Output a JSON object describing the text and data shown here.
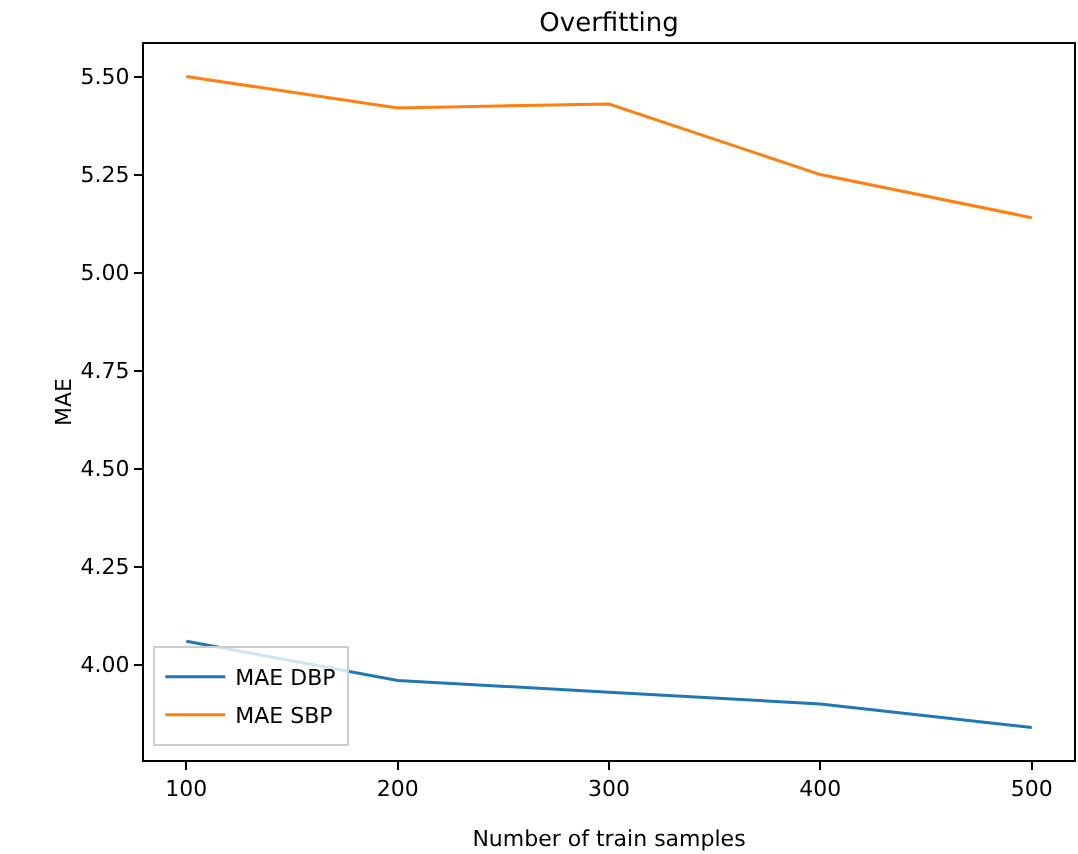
{
  "chart_data": {
    "type": "line",
    "title": "Overfitting",
    "xlabel": "Number of train samples",
    "ylabel": "MAE",
    "x": [
      100,
      200,
      300,
      400,
      500
    ],
    "series": [
      {
        "name": "MAE DBP",
        "color": "#1f77b4",
        "values": [
          4.06,
          3.96,
          3.93,
          3.9,
          3.84
        ]
      },
      {
        "name": "MAE SBP",
        "color": "#ff7f0e",
        "values": [
          5.5,
          5.42,
          5.43,
          5.25,
          5.14
        ]
      }
    ],
    "xlim": [
      80,
      520
    ],
    "xticks": [
      100,
      200,
      300,
      400,
      500
    ],
    "ylim": [
      3.757,
      5.583
    ],
    "yticks": [
      {
        "value": 4,
        "label": "4.00"
      },
      {
        "value": 4.25,
        "label": "4.25"
      },
      {
        "value": 4.5,
        "label": "4.50"
      },
      {
        "value": 4.75,
        "label": "4.75"
      },
      {
        "value": 5,
        "label": "5.00"
      },
      {
        "value": 5.25,
        "label": "5.25"
      },
      {
        "value": 5.5,
        "label": "5.50"
      }
    ],
    "grid": false,
    "legend": "bottom left",
    "marker": "none",
    "line_style": "solid"
  }
}
